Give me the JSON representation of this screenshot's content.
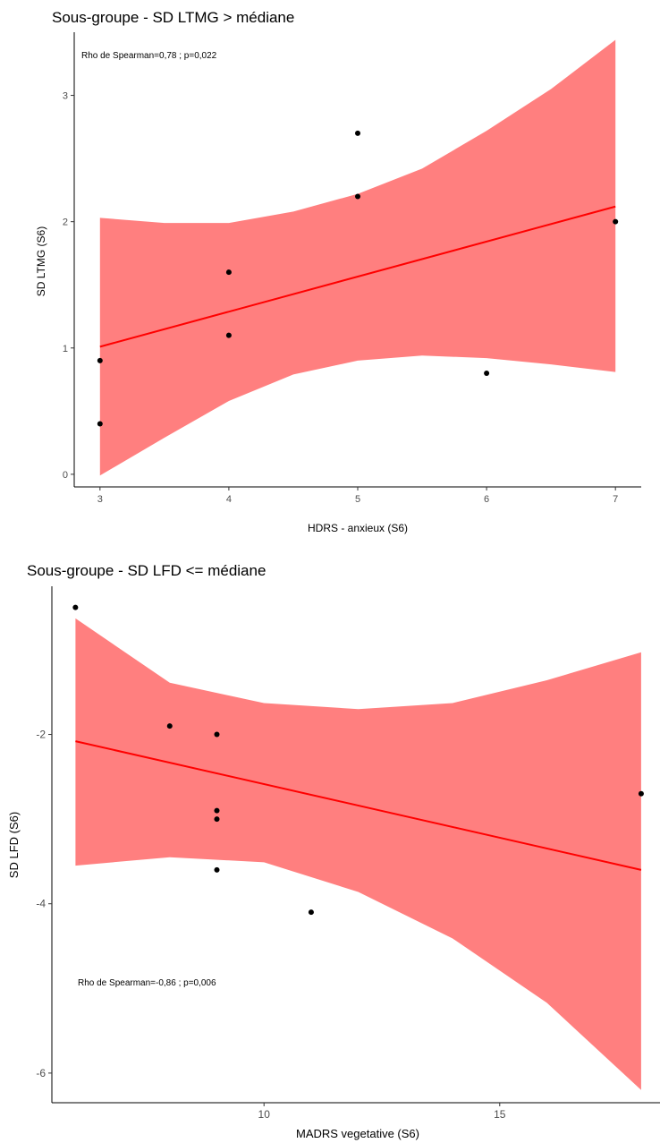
{
  "chart_data": [
    {
      "type": "scatter",
      "title": "Sous-groupe - SD LTMG > médiane",
      "xlabel": "HDRS - anxieux (S6)",
      "ylabel": "SD LTMG (S6)",
      "annotation": "Rho de Spearman=0,78 ; p=0,022",
      "xlim": [
        2.8,
        7.2
      ],
      "ylim": [
        -0.1,
        3.5
      ],
      "x_ticks": [
        3,
        4,
        5,
        6,
        7
      ],
      "x_tick_labels": [
        "3",
        "4",
        "5",
        "6",
        "7"
      ],
      "y_ticks": [
        0,
        1,
        2,
        3
      ],
      "y_tick_labels": [
        "0",
        "1",
        "2",
        "3"
      ],
      "grid": false,
      "points": [
        {
          "x": 3,
          "y": 0.9
        },
        {
          "x": 3,
          "y": 0.4
        },
        {
          "x": 4,
          "y": 1.6
        },
        {
          "x": 4,
          "y": 1.1
        },
        {
          "x": 5,
          "y": 2.7
        },
        {
          "x": 5,
          "y": 2.2
        },
        {
          "x": 6,
          "y": 0.8
        },
        {
          "x": 7,
          "y": 2.0
        }
      ],
      "fit_line": {
        "x": [
          3,
          7
        ],
        "y": [
          1.01,
          2.12
        ]
      },
      "confidence_band": {
        "x": [
          3.0,
          3.5,
          4.0,
          4.5,
          5.0,
          5.5,
          6.0,
          6.5,
          7.0
        ],
        "upper": [
          2.03,
          1.99,
          1.99,
          2.08,
          2.22,
          2.42,
          2.72,
          3.05,
          3.44
        ],
        "lower": [
          -0.01,
          0.29,
          0.58,
          0.79,
          0.9,
          0.94,
          0.92,
          0.87,
          0.81
        ]
      },
      "colors": {
        "line": "#ff0000",
        "band": "#ff7f7f",
        "points": "#000000"
      }
    },
    {
      "type": "scatter",
      "title": "Sous-groupe - SD LFD <= médiane",
      "xlabel": "MADRS vegetative (S6)",
      "ylabel": "SD LFD (S6)",
      "annotation": "Rho de Spearman=-0,86 ; p=0,006",
      "xlim": [
        5.5,
        18.4
      ],
      "ylim": [
        -6.35,
        -0.25
      ],
      "x_ticks": [
        10,
        15
      ],
      "x_tick_labels": [
        "10",
        "15"
      ],
      "y_ticks": [
        -6,
        -4,
        -2
      ],
      "y_tick_labels": [
        "-6",
        "-4",
        "-2"
      ],
      "grid": false,
      "points": [
        {
          "x": 6,
          "y": -0.5
        },
        {
          "x": 8,
          "y": -1.9
        },
        {
          "x": 9,
          "y": -2.0
        },
        {
          "x": 9,
          "y": -2.9
        },
        {
          "x": 9,
          "y": -3.0
        },
        {
          "x": 9,
          "y": -3.6
        },
        {
          "x": 11,
          "y": -4.1
        },
        {
          "x": 18,
          "y": -2.7
        }
      ],
      "fit_line": {
        "x": [
          6,
          18
        ],
        "y": [
          -2.08,
          -3.6
        ]
      },
      "confidence_band": {
        "x": [
          6,
          8,
          10,
          12,
          14,
          16,
          18
        ],
        "upper": [
          -0.63,
          -1.39,
          -1.63,
          -1.7,
          -1.63,
          -1.36,
          -1.03
        ],
        "lower": [
          -3.55,
          -3.45,
          -3.51,
          -3.86,
          -4.41,
          -5.17,
          -6.2
        ]
      },
      "colors": {
        "line": "#ff0000",
        "band": "#ff7f7f",
        "points": "#000000"
      }
    }
  ]
}
